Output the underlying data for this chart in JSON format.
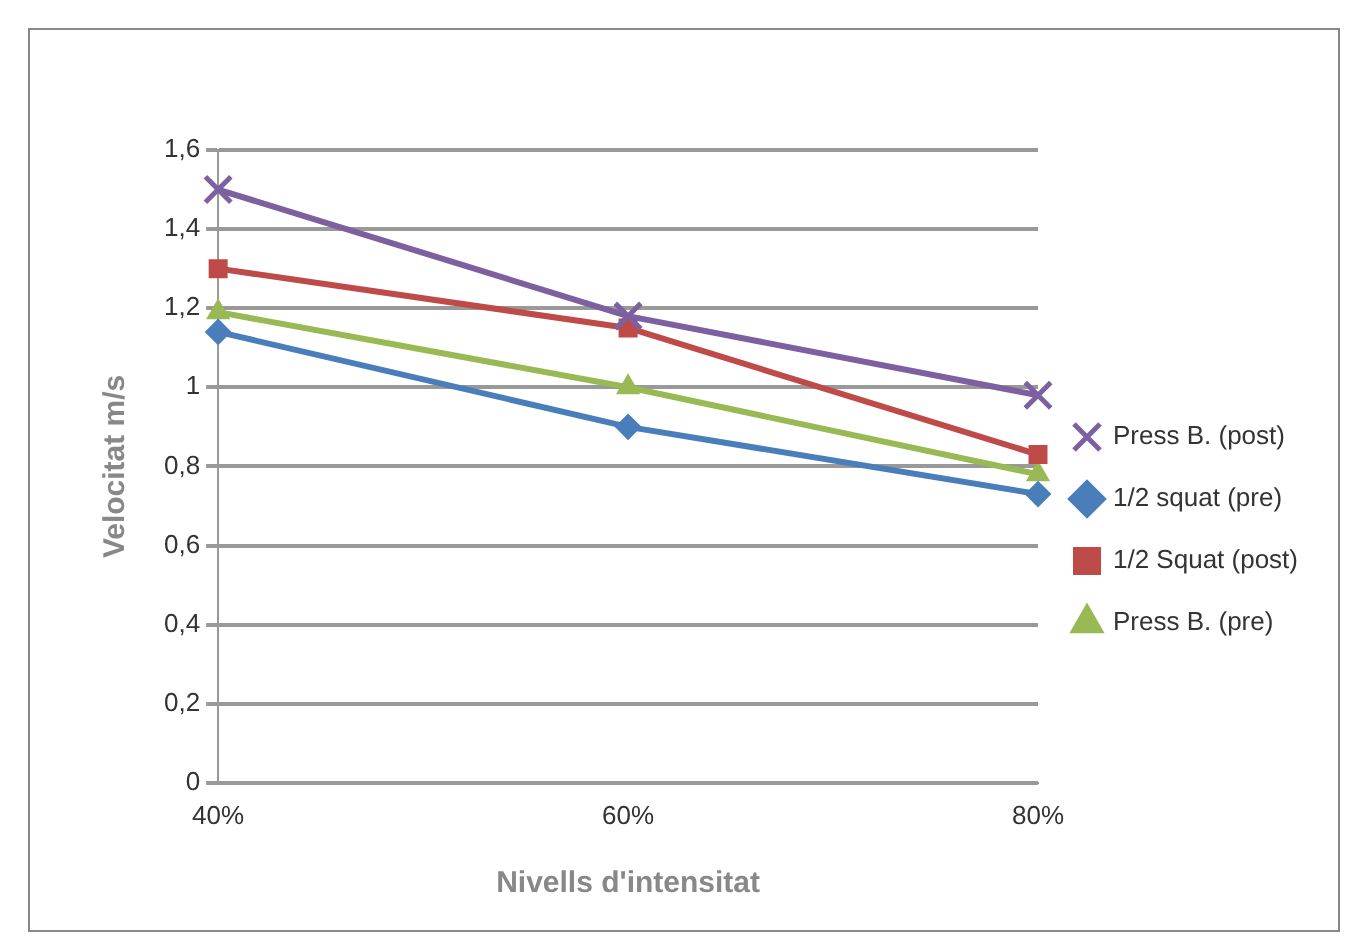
{
  "chart_data": {
    "type": "line",
    "xlabel": "Nivells d'intensitat",
    "ylabel": "Velocitat m/s",
    "categories": [
      "40%",
      "60%",
      "80%"
    ],
    "series": [
      {
        "name": "1/2 squat (pre)",
        "color": "#4a7ebb",
        "marker": "diamond",
        "values": [
          1.14,
          0.9,
          0.73
        ]
      },
      {
        "name": "1/2 Squat (post)",
        "color": "#be4b48",
        "marker": "square",
        "values": [
          1.3,
          1.15,
          0.83
        ]
      },
      {
        "name": "Press B. (pre)",
        "color": "#98b954",
        "marker": "triangle",
        "values": [
          1.19,
          1.0,
          0.78
        ]
      },
      {
        "name": "Press B. (post)",
        "color": "#7d60a0",
        "marker": "cross",
        "values": [
          1.5,
          1.18,
          0.98
        ]
      }
    ],
    "ylim": [
      0,
      1.6
    ],
    "yticks": [
      {
        "value": 0,
        "label": "0"
      },
      {
        "value": 0.2,
        "label": "0,2"
      },
      {
        "value": 0.4,
        "label": "0,4"
      },
      {
        "value": 0.6,
        "label": "0,6"
      },
      {
        "value": 0.8,
        "label": "0,8"
      },
      {
        "value": 1,
        "label": "1"
      },
      {
        "value": 1.2,
        "label": "1,2"
      },
      {
        "value": 1.4,
        "label": "1,4"
      },
      {
        "value": 1.6,
        "label": "1,6"
      }
    ],
    "grid": "y",
    "legend": "right",
    "line_style": "solid"
  }
}
